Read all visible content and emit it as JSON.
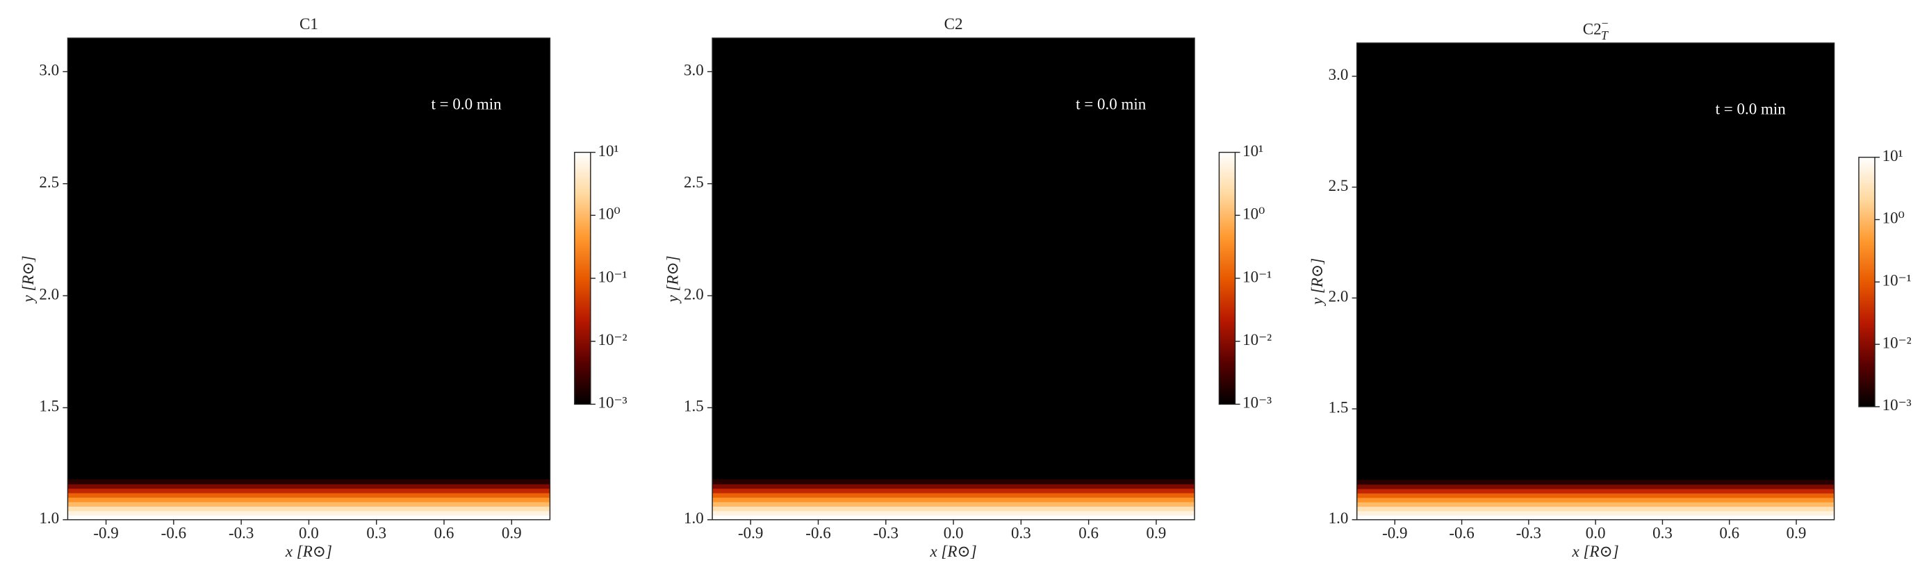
{
  "chart_data": [
    {
      "type": "heatmap",
      "title": "C1",
      "annotation": "t = 0.0 min",
      "xlabel": "x [R⊙]",
      "ylabel": "y [R⊙]",
      "xlim": [
        -1.07,
        1.07
      ],
      "ylim": [
        1.0,
        3.15
      ],
      "xticks": [
        -0.9,
        -0.6,
        -0.3,
        {
          "value": 0,
          "label": "0.0"
        },
        0.3,
        0.6,
        0.9
      ],
      "yticks": [
        {
          "value": 1,
          "label": "1.0"
        },
        1.5,
        {
          "value": 2,
          "label": "2.0"
        },
        2.5,
        {
          "value": 3,
          "label": "3.0"
        }
      ],
      "ybins": [
        1.0,
        1.02,
        1.04,
        1.06,
        1.08,
        1.1,
        1.12,
        1.14,
        1.16,
        1.18
      ],
      "values": [
        10,
        6,
        3,
        1,
        0.4,
        0.12,
        0.03,
        0.008,
        0.002
      ],
      "colormap": [
        "#000000",
        "#5a0000",
        "#b81800",
        "#e85a00",
        "#ff9a30",
        "#ffd9a0",
        "#ffffff"
      ],
      "log_color": true,
      "clim": [
        0.001,
        10
      ],
      "cticks": [
        {
          "value": 10,
          "label": "10¹"
        },
        {
          "value": 1,
          "label": "10⁰"
        },
        {
          "value": 0.1,
          "label": "10⁻¹"
        },
        {
          "value": 0.01,
          "label": "10⁻²"
        },
        {
          "value": 0.001,
          "label": "10⁻³"
        }
      ]
    },
    {
      "type": "heatmap",
      "title": "C2",
      "annotation": "t = 0.0 min",
      "xlabel": "x [R⊙]",
      "ylabel": "y [R⊙]",
      "xlim": [
        -1.07,
        1.07
      ],
      "ylim": [
        1.0,
        3.15
      ],
      "xticks": [
        -0.9,
        -0.6,
        -0.3,
        {
          "value": 0,
          "label": "0.0"
        },
        0.3,
        0.6,
        0.9
      ],
      "yticks": [
        {
          "value": 1,
          "label": "1.0"
        },
        1.5,
        {
          "value": 2,
          "label": "2.0"
        },
        2.5,
        {
          "value": 3,
          "label": "3.0"
        }
      ],
      "ybins": [
        1.0,
        1.02,
        1.04,
        1.06,
        1.08,
        1.1,
        1.12,
        1.14,
        1.16,
        1.18
      ],
      "values": [
        10,
        6,
        3,
        1,
        0.4,
        0.12,
        0.03,
        0.008,
        0.002
      ],
      "colormap": [
        "#000000",
        "#5a0000",
        "#b81800",
        "#e85a00",
        "#ff9a30",
        "#ffd9a0",
        "#ffffff"
      ],
      "log_color": true,
      "clim": [
        0.001,
        10
      ],
      "cticks": [
        {
          "value": 10,
          "label": "10¹"
        },
        {
          "value": 1,
          "label": "10⁰"
        },
        {
          "value": 0.1,
          "label": "10⁻¹"
        },
        {
          "value": 0.01,
          "label": "10⁻²"
        },
        {
          "value": 0.001,
          "label": "10⁻³"
        }
      ]
    },
    {
      "type": "heatmap",
      "title": "C2",
      "title_sup": "−",
      "title_sub": "T",
      "annotation": "t = 0.0 min",
      "xlabel": "x [R⊙]",
      "ylabel": "y [R⊙]",
      "xlim": [
        -1.07,
        1.07
      ],
      "ylim": [
        1.0,
        3.15
      ],
      "xticks": [
        -0.9,
        -0.6,
        -0.3,
        {
          "value": 0,
          "label": "0.0"
        },
        0.3,
        0.6,
        0.9
      ],
      "yticks": [
        {
          "value": 1,
          "label": "1.0"
        },
        1.5,
        {
          "value": 2,
          "label": "2.0"
        },
        2.5,
        {
          "value": 3,
          "label": "3.0"
        }
      ],
      "ybins": [
        1.0,
        1.02,
        1.04,
        1.06,
        1.08,
        1.1,
        1.12,
        1.14,
        1.16,
        1.18
      ],
      "values": [
        10,
        6,
        3,
        1,
        0.4,
        0.12,
        0.03,
        0.008,
        0.002
      ],
      "colormap": [
        "#000000",
        "#5a0000",
        "#b81800",
        "#e85a00",
        "#ff9a30",
        "#ffd9a0",
        "#ffffff"
      ],
      "log_color": true,
      "clim": [
        0.001,
        10
      ],
      "cticks": [
        {
          "value": 10,
          "label": "10¹"
        },
        {
          "value": 1,
          "label": "10⁰"
        },
        {
          "value": 0.1,
          "label": "10⁻¹"
        },
        {
          "value": 0.01,
          "label": "10⁻²"
        },
        {
          "value": 0.001,
          "label": "10⁻³"
        }
      ]
    }
  ]
}
